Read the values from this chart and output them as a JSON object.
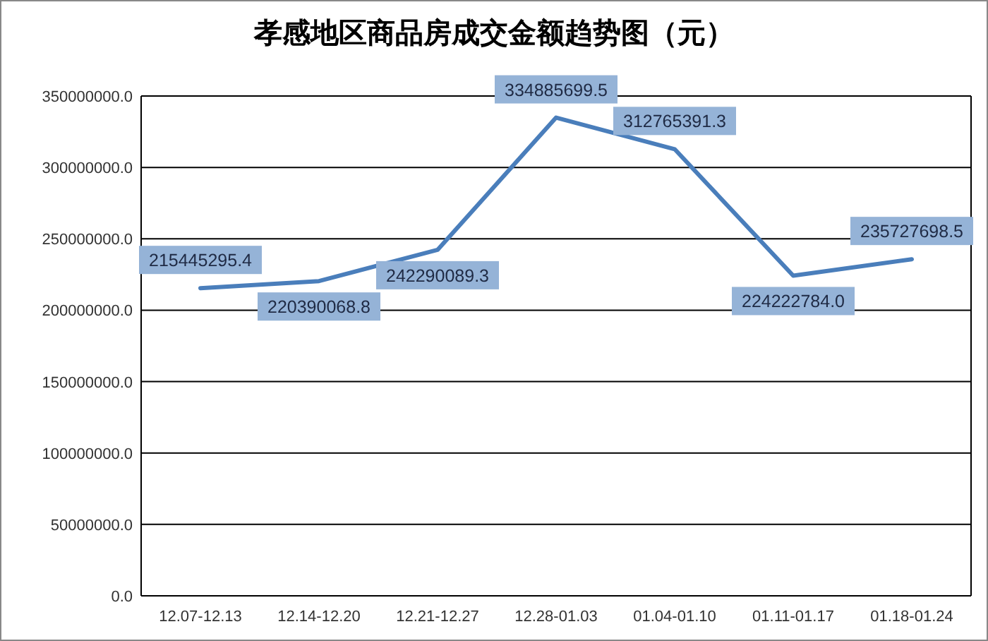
{
  "chart_data": {
    "type": "line",
    "title": "孝感地区商品房成交金额趋势图（元）",
    "categories": [
      "12.07-12.13",
      "12.14-12.20",
      "12.21-12.27",
      "12.28-01.03",
      "01.04-01.10",
      "01.11-01.17",
      "01.18-01.24"
    ],
    "series": [
      {
        "color": "#4a7ebb",
        "values": [
          215445295.4,
          220390068.8,
          242290089.3,
          334885699.5,
          312765391.3,
          224222784.0,
          235727698.5
        ],
        "value_labels": [
          "215445295.4",
          "220390068.8",
          "242290089.3",
          "334885699.5",
          "312765391.3",
          "224222784.0",
          "235727698.5"
        ]
      }
    ],
    "ylim": [
      0,
      350000000
    ],
    "yticks": [
      {
        "value": 0,
        "label": "0.0"
      },
      {
        "value": 50000000,
        "label": "50000000.0"
      },
      {
        "value": 100000000,
        "label": "100000000.0"
      },
      {
        "value": 150000000,
        "label": "150000000.0"
      },
      {
        "value": 200000000,
        "label": "200000000.0"
      },
      {
        "value": 250000000,
        "label": "250000000.0"
      },
      {
        "value": 300000000,
        "label": "300000000.0"
      },
      {
        "value": 350000000,
        "label": "350000000.0"
      }
    ],
    "grid": "y",
    "marker": "none",
    "line_style": "solid"
  }
}
